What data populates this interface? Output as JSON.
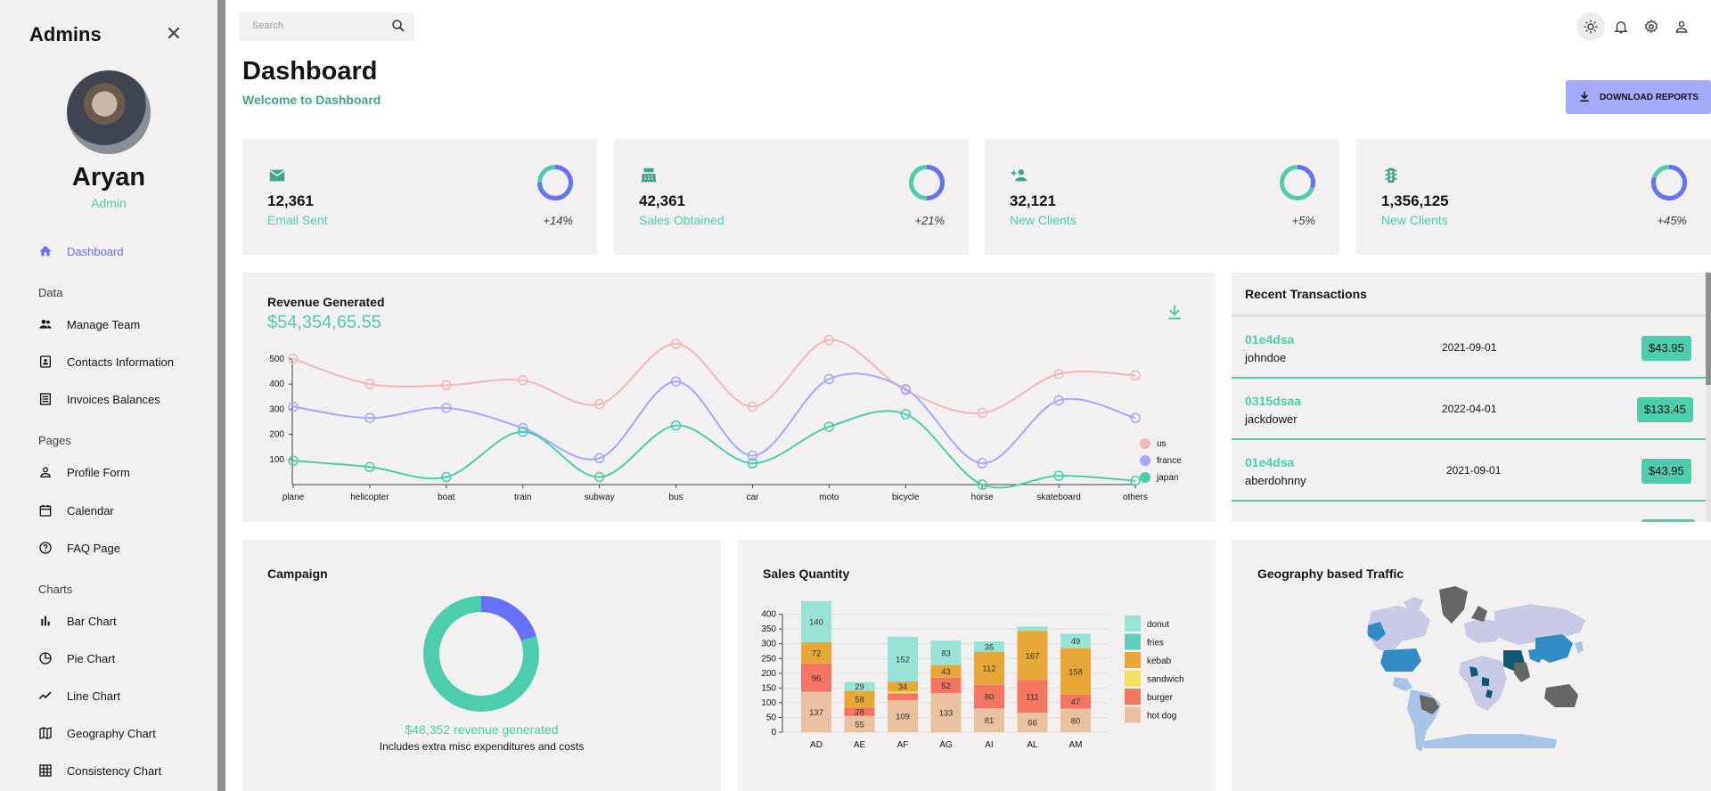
{
  "sidebar": {
    "brand": "Admins",
    "user_name": "Aryan",
    "user_role": "Admin",
    "sections": {
      "data": "Data",
      "pages": "Pages",
      "charts": "Charts"
    },
    "items": [
      {
        "label": "Dashboard",
        "icon": "home-icon"
      },
      {
        "label": "Manage Team",
        "icon": "people-icon"
      },
      {
        "label": "Contacts Information",
        "icon": "contacts-icon"
      },
      {
        "label": "Invoices Balances",
        "icon": "receipt-icon"
      },
      {
        "label": "Profile Form",
        "icon": "person-icon"
      },
      {
        "label": "Calendar",
        "icon": "calendar-icon"
      },
      {
        "label": "FAQ Page",
        "icon": "help-icon"
      },
      {
        "label": "Bar Chart",
        "icon": "bar-chart-icon"
      },
      {
        "label": "Pie Chart",
        "icon": "pie-chart-icon"
      },
      {
        "label": "Line Chart",
        "icon": "timeline-icon"
      },
      {
        "label": "Geography Chart",
        "icon": "map-icon"
      },
      {
        "label": "Consistency Chart",
        "icon": "grid-icon"
      }
    ]
  },
  "search": {
    "placeholder": "Search"
  },
  "header": {
    "title": "Dashboard",
    "subtitle": "Welcome to Dashboard",
    "download_label": "DOWNLOAD REPORTS"
  },
  "stats": [
    {
      "value": "12,361",
      "label": "Email Sent",
      "increase": "+14%",
      "progress": 0.75,
      "icon": "email-icon"
    },
    {
      "value": "42,361",
      "label": "Sales Obtained",
      "increase": "+21%",
      "progress": 0.5,
      "icon": "point-of-sale-icon"
    },
    {
      "value": "32,121",
      "label": "New Clients",
      "increase": "+5%",
      "progress": 0.3,
      "icon": "person-add-icon"
    },
    {
      "value": "1,356,125",
      "label": "New Clients",
      "increase": "+45%",
      "progress": 0.8,
      "icon": "traffic-icon"
    }
  ],
  "revenue": {
    "title": "Revenue Generated",
    "amount": "$54,354,65.55"
  },
  "transactions": {
    "title": "Recent Transactions",
    "rows": [
      {
        "id": "01e4dsa",
        "user": "johndoe",
        "date": "2021-09-01",
        "cost": "$43.95"
      },
      {
        "id": "0315dsaa",
        "user": "jackdower",
        "date": "2022-04-01",
        "cost": "$133.45"
      },
      {
        "id": "01e4dsa",
        "user": "aberdohnny",
        "date": "2021-09-01",
        "cost": "$43.95"
      }
    ]
  },
  "campaign": {
    "title": "Campaign",
    "revenue_text": "$48,352 revenue generated",
    "note": "Includes extra misc expenditures and costs",
    "progress": 0.8
  },
  "sales_quantity": {
    "title": "Sales Quantity"
  },
  "geography": {
    "title": "Geography based Traffic"
  },
  "colors": {
    "green": "#4cceac",
    "blue": "#6870fa",
    "lavender": "#a4a9fc",
    "panel": "#f2f0f0"
  },
  "chart_data": [
    {
      "type": "line",
      "categories": [
        "plane",
        "helicopter",
        "boat",
        "train",
        "subway",
        "bus",
        "car",
        "moto",
        "bicycle",
        "horse",
        "skateboard",
        "others"
      ],
      "series": [
        {
          "name": "us",
          "color": "#f1b9b7",
          "values": [
            500,
            400,
            395,
            415,
            320,
            560,
            310,
            575,
            375,
            285,
            440,
            435
          ]
        },
        {
          "name": "france",
          "color": "#a4a9fc",
          "values": [
            310,
            265,
            305,
            225,
            105,
            410,
            115,
            420,
            380,
            85,
            335,
            265
          ]
        },
        {
          "name": "japan",
          "color": "#4cceac",
          "values": [
            95,
            70,
            30,
            210,
            30,
            235,
            85,
            230,
            280,
            0,
            35,
            15
          ]
        }
      ],
      "yticks": [
        100,
        200,
        300,
        400,
        500
      ],
      "ylim": [
        0,
        560
      ]
    },
    {
      "type": "bar",
      "stacked": true,
      "categories": [
        "AD",
        "AE",
        "AF",
        "AG",
        "AI",
        "AL",
        "AM"
      ],
      "series": [
        {
          "name": "hot dog",
          "color": "#e8c1a0",
          "values": [
            137,
            55,
            109,
            133,
            81,
            66,
            80
          ]
        },
        {
          "name": "burger",
          "color": "#f47560",
          "values": [
            96,
            28,
            23,
            52,
            80,
            111,
            47
          ]
        },
        {
          "name": "sandwich",
          "color": "#f1e15b",
          "values": [
            0,
            0,
            6,
            0,
            0,
            0,
            0
          ]
        },
        {
          "name": "kebab",
          "color": "#e8a838",
          "values": [
            72,
            58,
            34,
            43,
            112,
            167,
            158
          ]
        },
        {
          "name": "fries",
          "color": "#61cdbb",
          "values": [
            0,
            0,
            0,
            0,
            0,
            0,
            0
          ]
        },
        {
          "name": "donut",
          "color": "#97e3d5",
          "values": [
            140,
            29,
            152,
            83,
            35,
            14,
            49
          ]
        }
      ],
      "yticks": [
        0,
        50,
        100,
        150,
        200,
        250,
        300,
        350,
        400
      ],
      "ylim": [
        0,
        420
      ]
    }
  ]
}
